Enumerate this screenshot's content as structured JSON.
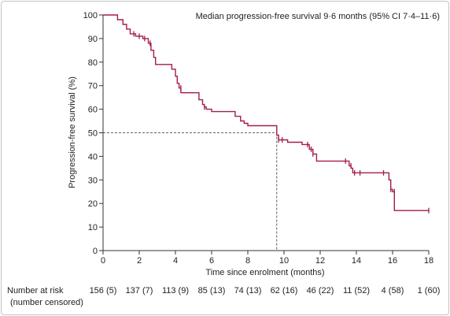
{
  "chart_data": {
    "type": "line",
    "annotation": "Median progression-free survival 9·6 months (95% CI 7·4–11·6)",
    "xlabel": "Time since enrolment (months)",
    "ylabel": "Progression-free survival (%)",
    "xlim": [
      0,
      18
    ],
    "ylim": [
      0,
      100
    ],
    "x_ticks": [
      0,
      2,
      4,
      6,
      8,
      10,
      12,
      14,
      16,
      18
    ],
    "y_ticks": [
      0,
      10,
      20,
      30,
      40,
      50,
      60,
      70,
      80,
      90,
      100
    ],
    "median_pfs": 9.6,
    "median_level": 50,
    "colors": {
      "curve": "#a51d45",
      "axis": "#333333",
      "reference": "#333333"
    },
    "series": [
      {
        "x": [
          0,
          0.8,
          0.8,
          1.1,
          1.1,
          1.3,
          1.3,
          1.5,
          1.5,
          1.8,
          1.8,
          2.2,
          2.2,
          2.5,
          2.5,
          2.65,
          2.65,
          2.8,
          2.8,
          2.9,
          2.9,
          3.8,
          3.8,
          4.0,
          4.0,
          4.1,
          4.1,
          4.2,
          4.2,
          4.3,
          4.3,
          4.4,
          4.4,
          5.3,
          5.3,
          5.5,
          5.5,
          5.6,
          5.6,
          5.7,
          5.7,
          6.0,
          6.0,
          7.3,
          7.3,
          7.6,
          7.6,
          7.8,
          7.8,
          8.0,
          8.0,
          9.6,
          9.6,
          9.7,
          9.7,
          10.2,
          10.2,
          11.0,
          11.0,
          11.4,
          11.4,
          11.6,
          11.6,
          11.8,
          11.8,
          12.9,
          12.9,
          13.6,
          13.6,
          13.7,
          13.7,
          13.8,
          13.8,
          15.8,
          15.8,
          15.9,
          15.9,
          16.0,
          16.0,
          16.1,
          16.1,
          18.0
        ],
        "y": [
          100,
          100,
          98,
          98,
          96,
          96,
          94,
          94,
          92,
          92,
          91,
          91,
          90,
          90,
          88,
          88,
          85,
          85,
          82,
          82,
          79,
          79,
          77,
          77,
          74,
          74,
          71,
          71,
          69,
          69,
          67,
          67,
          67,
          67,
          64,
          64,
          62,
          62,
          61,
          61,
          60,
          60,
          59,
          59,
          57,
          57,
          55,
          55,
          54,
          54,
          53,
          53,
          49,
          49,
          47,
          47,
          46,
          46,
          45,
          45,
          43,
          43,
          41,
          41,
          38,
          38,
          38,
          38,
          36,
          36,
          35,
          35,
          33,
          33,
          30,
          30,
          26,
          26,
          25,
          25,
          17,
          17
        ]
      }
    ],
    "censor_marks": {
      "x": [
        1.7,
        2.0,
        2.3,
        2.6,
        4.3,
        5.6,
        9.7,
        9.9,
        11.3,
        11.5,
        11.6,
        13.4,
        13.7,
        13.9,
        14.2,
        15.5,
        15.9,
        16.1,
        18.0
      ],
      "y": [
        92,
        91,
        90,
        88,
        69,
        61,
        47,
        47,
        45,
        43,
        41,
        38,
        36,
        33,
        33,
        33,
        26,
        25,
        17
      ]
    },
    "number_at_risk": {
      "label_line1": "Number at risk",
      "label_line2": "(number censored)",
      "values": [
        "156 (5)",
        "137 (7)",
        "113 (9)",
        "85 (13)",
        "74 (13)",
        "62 (16)",
        "46 (22)",
        "11 (52)",
        "4 (58)",
        "1 (60)"
      ]
    }
  }
}
